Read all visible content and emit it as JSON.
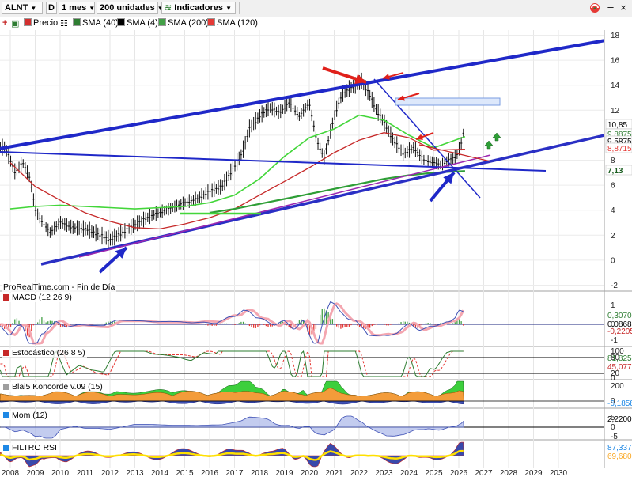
{
  "toolbar": {
    "symbol": "ALNT",
    "d_button": "D",
    "period": "1 mes",
    "units": "200 unidades",
    "indicators": "Indicadores"
  },
  "legend": [
    {
      "label": "Precio",
      "color": "#d32f2f"
    },
    {
      "label": "SMA (40)",
      "color": "#2e7d32"
    },
    {
      "label": "SMA (4)",
      "color": "#000000"
    },
    {
      "label": "SMA (200)",
      "color": "#43a047"
    },
    {
      "label": "SMA (120)",
      "color": "#e53935"
    }
  ],
  "source_label": "ProRealTime.com - Fin de Día",
  "panels": {
    "macd": {
      "title": "MACD (12 26 9)"
    },
    "stoch": {
      "title": "Estocástico (26 8 5)"
    },
    "blai": {
      "title": "Blai5 Koncorde v.09 (15)"
    },
    "mom": {
      "title": "Mom (12)"
    },
    "rsi": {
      "title": "FILTRO RSI"
    }
  },
  "chart_data": [
    {
      "type": "line",
      "title": "ALNT",
      "x_labels": [
        "2008",
        "2009",
        "2010",
        "2011",
        "2012",
        "2013",
        "2014",
        "2015",
        "2016",
        "2017",
        "2018",
        "2019",
        "2020",
        "2021",
        "2022",
        "2023",
        "2024",
        "2025",
        "2026",
        "2027",
        "2028",
        "2029",
        "2030"
      ],
      "y_ticks": [
        -2,
        0,
        2,
        4,
        6,
        8,
        10,
        12,
        14,
        16,
        18
      ],
      "ylim": [
        -2.5,
        19
      ],
      "price_tags": [
        {
          "text": "10,85",
          "color": "#000000",
          "bg": "#ffffff"
        },
        {
          "text": "9,8875",
          "color": "#2e7d32",
          "bg": "#ffffff"
        },
        {
          "text": "9,5875",
          "color": "#000000",
          "bg": "#ffffff"
        },
        {
          "text": "8,8715",
          "color": "#e53935",
          "bg": "#ffffff"
        },
        {
          "text": "7,13",
          "color": "#1b5e20",
          "bg": "#ffffff"
        }
      ],
      "series": [
        {
          "x": [
            2007.8,
            2008.2,
            2008.5,
            2008.8,
            2009.0,
            2009.3,
            2009.6,
            2010.0,
            2010.5,
            2011.0,
            2011.5,
            2012.0,
            2012.5,
            2013.0,
            2013.5,
            2014.0,
            2014.5,
            2015.0,
            2015.5,
            2016.0,
            2016.5,
            2017.0,
            2017.3,
            2017.6,
            2018.0,
            2018.4,
            2018.8,
            2019.2,
            2019.6,
            2020.0,
            2020.3,
            2020.6,
            2021.0,
            2021.3,
            2021.6,
            2021.9,
            2022.1,
            2022.4,
            2022.7,
            2023.0,
            2023.4,
            2023.8,
            2024.2,
            2024.6,
            2025.0,
            2025.3,
            2025.6,
            2025.9,
            2026.1,
            2026.25
          ],
          "values": [
            9.0,
            7.0,
            7.8,
            6.5,
            4.0,
            3.0,
            2.2,
            3.0,
            2.6,
            2.5,
            2.1,
            1.6,
            2.2,
            2.8,
            3.4,
            3.8,
            4.2,
            4.6,
            4.9,
            5.5,
            5.9,
            7.5,
            8.5,
            10.5,
            11.5,
            12.2,
            11.8,
            12.6,
            11.5,
            12.6,
            9.5,
            8.2,
            11.5,
            13.2,
            13.7,
            14.0,
            14.3,
            13.3,
            12.0,
            11.0,
            9.5,
            8.5,
            9.0,
            8.0,
            7.8,
            7.6,
            8.0,
            8.3,
            9.3,
            10.85
          ]
        },
        {
          "x": [
            2008,
            2009,
            2010,
            2011,
            2012,
            2013,
            2014,
            2015,
            2016,
            2017,
            2018,
            2019,
            2020,
            2021,
            2022,
            2023,
            2024,
            2025,
            2026.25
          ],
          "values": [
            4.1,
            4.3,
            4.4,
            4.3,
            4.2,
            4.1,
            4.2,
            4.3,
            4.6,
            5.2,
            6.5,
            8.3,
            9.8,
            10.5,
            11.6,
            11.2,
            10.0,
            9.0,
            9.8875
          ]
        },
        {
          "x": [
            2008,
            2009,
            2010,
            2011,
            2012,
            2013,
            2014,
            2015,
            2016,
            2017,
            2018,
            2019,
            2020,
            2021,
            2022,
            2023,
            2024,
            2025,
            2026.25
          ],
          "values": [
            7.8,
            5.9,
            4.8,
            3.8,
            3.1,
            2.6,
            2.5,
            2.9,
            3.4,
            4.1,
            5.2,
            6.3,
            7.4,
            8.6,
            9.6,
            10.2,
            9.8,
            8.8,
            8.8715
          ]
        },
        {
          "x": [
            2016,
            2017,
            2018,
            2019,
            2020,
            2021,
            2022,
            2023,
            2024,
            2025,
            2026.25
          ],
          "values": [
            3.8,
            4.1,
            4.5,
            4.9,
            5.3,
            5.7,
            6.1,
            6.5,
            6.8,
            7.0,
            7.13
          ]
        }
      ]
    }
  ]
}
